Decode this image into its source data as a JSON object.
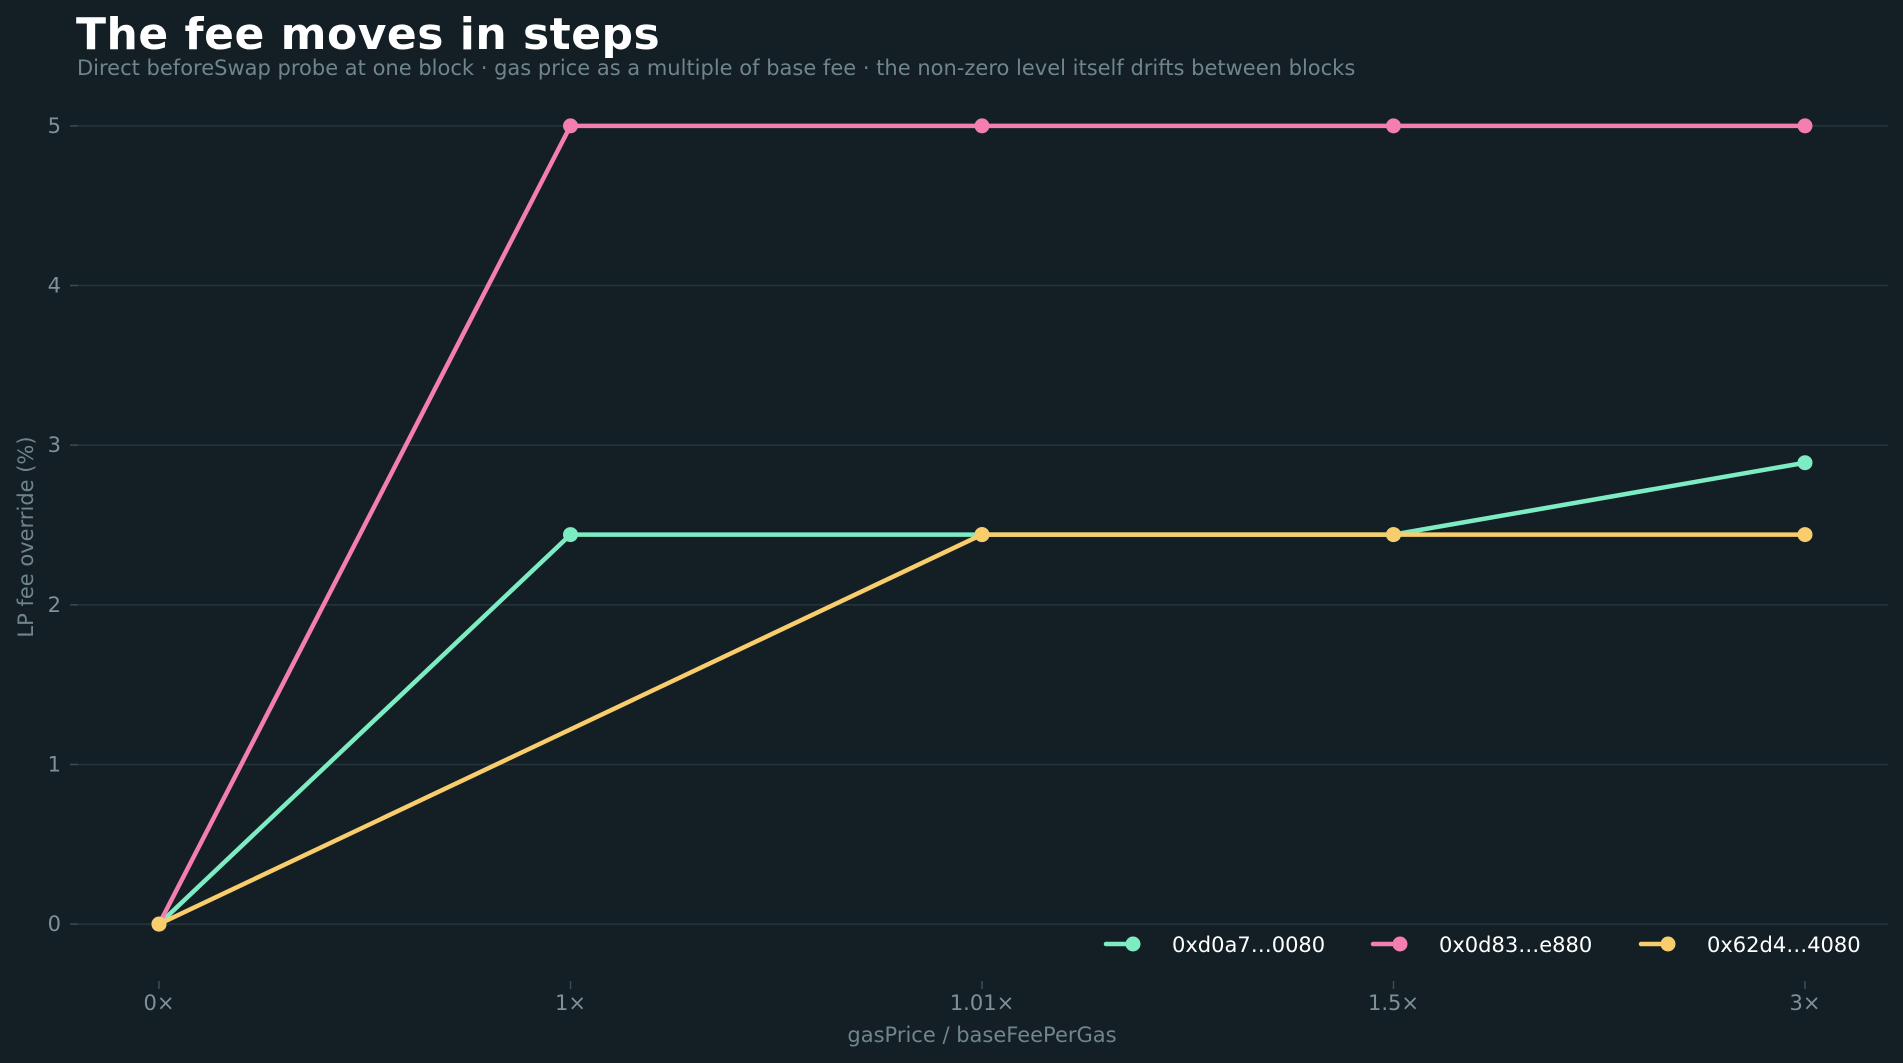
{
  "chart_data": {
    "type": "line",
    "title": "The fee moves in steps",
    "subtitle": "Direct beforeSwap probe at one block · gas price as a multiple of base fee · the non-zero level itself drifts between blocks",
    "xlabel": "gasPrice / baseFeePerGas",
    "ylabel": "LP fee override (%)",
    "categories": [
      "0×",
      "1×",
      "1.01×",
      "1.5×",
      "3×"
    ],
    "yticks": [
      0,
      1,
      2,
      3,
      4,
      5
    ],
    "ylim": [
      -0.35,
      5.35
    ],
    "grid": "horizontal",
    "legend_position": "bottom-right",
    "series": [
      {
        "name": "0xd0a7…0080",
        "color": "#7eecc3",
        "values": [
          0,
          2.44,
          2.44,
          2.44,
          2.89
        ]
      },
      {
        "name": "0x0d83…e880",
        "color": "#f47fae",
        "values": [
          0,
          5.0,
          5.0,
          5.0,
          5.0
        ]
      },
      {
        "name": "0x62d4…4080",
        "color": "#f9cd6b",
        "values": [
          0,
          null,
          2.44,
          2.44,
          2.44
        ]
      }
    ]
  }
}
